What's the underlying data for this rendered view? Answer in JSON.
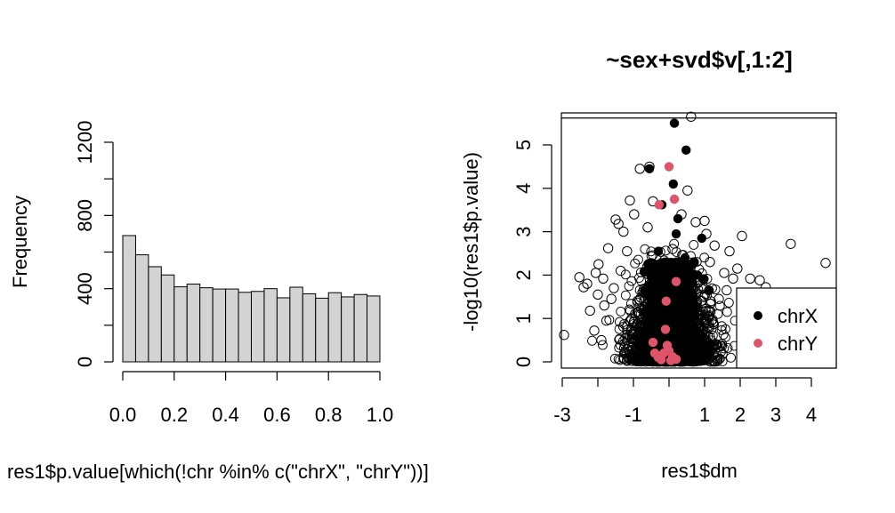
{
  "chart_data": [
    {
      "type": "bar",
      "title": "",
      "xlabel": "res1$p.value[which(!chr %in% c(\"chrX\", \"chrY\"))]",
      "ylabel": "Frequency",
      "xlim": [
        0,
        1
      ],
      "ylim": [
        0,
        1200
      ],
      "x_ticks": [
        "0.0",
        "0.2",
        "0.4",
        "0.6",
        "0.8",
        "1.0"
      ],
      "y_ticks": [
        "0",
        "400",
        "800",
        "1200"
      ],
      "bin_width": 0.05,
      "bins": [
        {
          "start": 0.0,
          "end": 0.05,
          "count": 690
        },
        {
          "start": 0.05,
          "end": 0.1,
          "count": 585
        },
        {
          "start": 0.1,
          "end": 0.15,
          "count": 520
        },
        {
          "start": 0.15,
          "end": 0.2,
          "count": 475
        },
        {
          "start": 0.2,
          "end": 0.25,
          "count": 410
        },
        {
          "start": 0.25,
          "end": 0.3,
          "count": 425
        },
        {
          "start": 0.3,
          "end": 0.35,
          "count": 405
        },
        {
          "start": 0.35,
          "end": 0.4,
          "count": 398
        },
        {
          "start": 0.4,
          "end": 0.45,
          "count": 398
        },
        {
          "start": 0.45,
          "end": 0.5,
          "count": 380
        },
        {
          "start": 0.5,
          "end": 0.55,
          "count": 385
        },
        {
          "start": 0.55,
          "end": 0.6,
          "count": 400
        },
        {
          "start": 0.6,
          "end": 0.65,
          "count": 350
        },
        {
          "start": 0.65,
          "end": 0.7,
          "count": 408
        },
        {
          "start": 0.7,
          "end": 0.75,
          "count": 372
        },
        {
          "start": 0.75,
          "end": 0.8,
          "count": 348
        },
        {
          "start": 0.8,
          "end": 0.85,
          "count": 378
        },
        {
          "start": 0.85,
          "end": 0.9,
          "count": 355
        },
        {
          "start": 0.9,
          "end": 0.95,
          "count": 368
        },
        {
          "start": 0.95,
          "end": 1.0,
          "count": 360
        }
      ],
      "bar_color": "#d3d3d3"
    },
    {
      "type": "scatter",
      "title": "~sex+svd$v[,1:2]",
      "xlabel": "res1$dm",
      "ylabel": "-log10(res1$p.value)",
      "xlim": [
        -3,
        4.6
      ],
      "ylim": [
        -0.1,
        5.85
      ],
      "x_ticks": [
        "-3",
        "-1",
        "1",
        "2",
        "3",
        "4"
      ],
      "x_tick_positions": [
        -3,
        -2,
        -1,
        0,
        1,
        2,
        3,
        4
      ],
      "y_ticks": [
        "0",
        "1",
        "2",
        "3",
        "4",
        "5"
      ],
      "hline": 5.62,
      "legend": {
        "position": "bottom-right",
        "entries": [
          {
            "label": "chrX",
            "color": "#000000"
          },
          {
            "label": "chrY",
            "color": "#df536b"
          }
        ]
      },
      "series": [
        {
          "name": "",
          "marker": "open-circle",
          "points": [
            [
              -2.95,
              0.62
            ],
            [
              -2.52,
              1.95
            ],
            [
              -2.4,
              1.72
            ],
            [
              -2.3,
              1.8
            ],
            [
              -2.22,
              1.18
            ],
            [
              -2.1,
              0.72
            ],
            [
              -2.06,
              2.05
            ],
            [
              -2.0,
              1.55
            ],
            [
              -1.98,
              2.25
            ],
            [
              -1.9,
              0.5
            ],
            [
              -1.85,
              1.92
            ],
            [
              -1.82,
              1.3
            ],
            [
              -1.76,
              0.95
            ],
            [
              -1.71,
              2.62
            ],
            [
              -1.62,
              1.45
            ],
            [
              -1.55,
              1.7
            ],
            [
              -1.5,
              3.28
            ],
            [
              -1.42,
              3.18
            ],
            [
              -1.36,
              2.1
            ],
            [
              -1.28,
              3.0
            ],
            [
              -1.18,
              2.55
            ],
            [
              -1.1,
              3.72
            ],
            [
              -1.05,
              0.15
            ],
            [
              -0.98,
              3.4
            ],
            [
              -0.82,
              4.45
            ],
            [
              -0.55,
              4.5
            ],
            [
              -0.6,
              3.1
            ],
            [
              -0.45,
              3.7
            ],
            [
              0.35,
              3.4
            ],
            [
              0.52,
              3.95
            ],
            [
              0.75,
              3.22
            ],
            [
              1.0,
              3.25
            ],
            [
              1.05,
              2.95
            ],
            [
              1.15,
              2.3
            ],
            [
              1.28,
              2.68
            ],
            [
              1.4,
              1.45
            ],
            [
              1.48,
              0.82
            ],
            [
              1.55,
              2.05
            ],
            [
              1.62,
              1.65
            ],
            [
              1.7,
              2.55
            ],
            [
              1.8,
              1.92
            ],
            [
              1.92,
              2.15
            ],
            [
              2.05,
              2.9
            ],
            [
              2.1,
              1.4
            ],
            [
              2.28,
              1.92
            ],
            [
              2.55,
              1.88
            ],
            [
              2.72,
              1.72
            ],
            [
              3.42,
              2.72
            ],
            [
              4.4,
              2.28
            ],
            [
              0.62,
              5.65
            ],
            [
              -0.2,
              2.1
            ],
            [
              0.1,
              2.6
            ],
            [
              -0.3,
              1.2
            ],
            [
              0.2,
              0.9
            ],
            [
              0.5,
              1.7
            ],
            [
              -0.7,
              1.4
            ],
            [
              0.8,
              1.1
            ],
            [
              -0.9,
              0.6
            ],
            [
              0.95,
              0.4
            ],
            [
              -0.15,
              0.35
            ]
          ]
        },
        {
          "name": "chrX",
          "marker": "filled-circle",
          "color": "#000000",
          "points": [
            [
              0.15,
              5.5
            ],
            [
              0.48,
              4.88
            ],
            [
              -0.55,
              4.45
            ],
            [
              0.12,
              4.1
            ],
            [
              -0.2,
              3.62
            ],
            [
              0.25,
              3.3
            ],
            [
              0.2,
              2.95
            ],
            [
              0.92,
              2.85
            ],
            [
              -0.3,
              2.55
            ],
            [
              0.45,
              2.4
            ],
            [
              0.8,
              2.0
            ],
            [
              0.05,
              1.7
            ],
            [
              0.6,
              1.2
            ],
            [
              0.85,
              0.1
            ],
            [
              0.92,
              0.12
            ]
          ]
        },
        {
          "name": "chrY",
          "marker": "filled-circle",
          "color": "#df536b",
          "points": [
            [
              0.0,
              4.5
            ],
            [
              0.15,
              3.75
            ],
            [
              -0.28,
              3.62
            ],
            [
              0.2,
              1.85
            ],
            [
              -0.08,
              1.4
            ],
            [
              -0.1,
              0.75
            ],
            [
              -0.45,
              0.45
            ],
            [
              -0.05,
              0.38
            ],
            [
              -0.4,
              0.2
            ],
            [
              -0.15,
              0.2
            ],
            [
              0.0,
              0.25
            ],
            [
              0.1,
              0.12
            ],
            [
              -0.3,
              0.1
            ],
            [
              0.2,
              0.06
            ],
            [
              -0.22,
              0.05
            ],
            [
              0.05,
              0.03
            ]
          ]
        }
      ]
    }
  ]
}
